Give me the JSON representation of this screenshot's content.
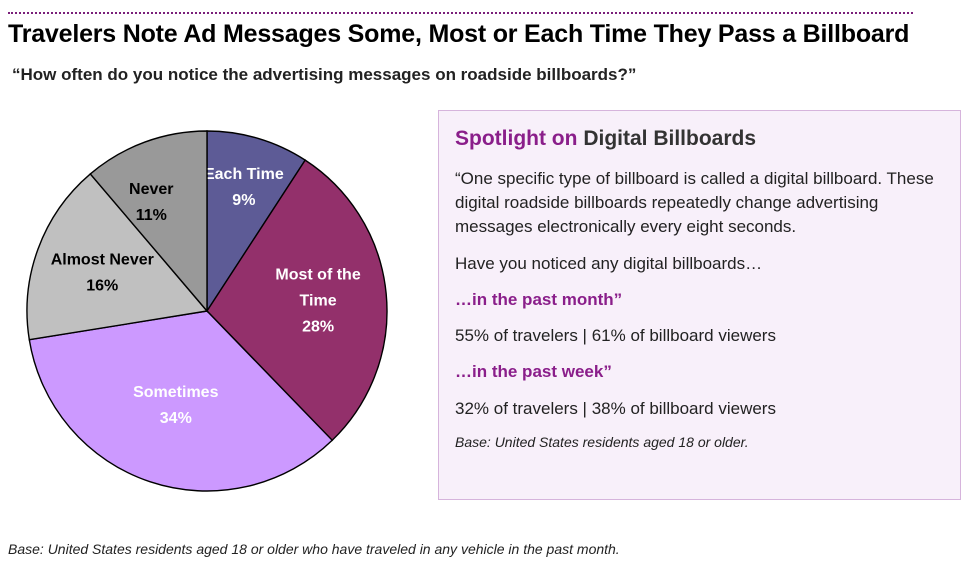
{
  "header": {
    "title": "Travelers Note Ad Messages Some, Most or Each Time They Pass a Billboard",
    "subtitle": "“How often do you notice the advertising messages on roadside billboards?”"
  },
  "chart_data": {
    "type": "pie",
    "title": "Travelers Note Ad Messages Some, Most or Each Time They Pass a Billboard",
    "subtitle": "“How often do you notice the advertising messages on roadside billboards?”",
    "unit": "%",
    "slices": [
      {
        "label": "Each Time",
        "value": 9,
        "display": "9%",
        "color": "#5d5b96",
        "label_color": "#ffffff"
      },
      {
        "label": "Most of the Time",
        "label_lines": [
          "Most of the",
          "Time"
        ],
        "value": 28,
        "display": "28%",
        "color": "#93306b",
        "label_color": "#ffffff"
      },
      {
        "label": "Sometimes",
        "value": 34,
        "display": "34%",
        "color": "#cc99ff",
        "label_color": "#ffffff"
      },
      {
        "label": "Almost Never",
        "value": 16,
        "display": "16%",
        "color": "#c0c0c0",
        "label_color": "#000000"
      },
      {
        "label": "Never",
        "value": 11,
        "display": "11%",
        "color": "#999999",
        "label_color": "#000000"
      }
    ],
    "start": "12 o'clock",
    "direction": "clockwise"
  },
  "spotlight": {
    "heading_accent": "Spotlight on",
    "heading_rest": "Digital Billboards",
    "quote": "“One specific type of billboard is called a digital billboard. These digital roadside billboards repeatedly change advertising messages electronically every eight seconds.",
    "question": "Have you noticed any digital billboards…",
    "q_month": "…in the past month”",
    "month_stats": "55% of travelers  |  61% of billboard viewers",
    "q_week": "…in the past week”",
    "week_stats": "32% of travelers  |  38% of billboard viewers",
    "base": "Base:  United States residents aged 18 or older."
  },
  "footer": {
    "base": "Base:  United States residents aged 18 or older who have traveled in any vehicle in the past month."
  }
}
